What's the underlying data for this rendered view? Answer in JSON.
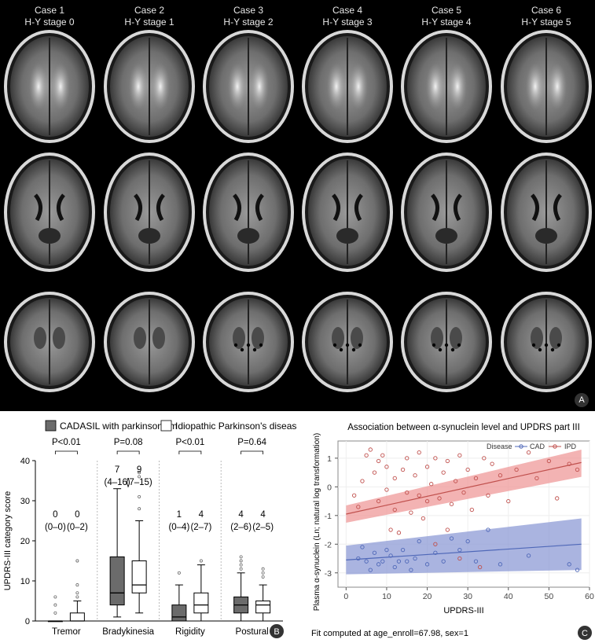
{
  "panel_a": {
    "cases": [
      {
        "case": "Case 1",
        "stage": "H-Y stage 0"
      },
      {
        "case": "Case 2",
        "stage": "H-Y stage 1"
      },
      {
        "case": "Case 3",
        "stage": "H-Y stage 2"
      },
      {
        "case": "Case 4",
        "stage": "H-Y stage 3"
      },
      {
        "case": "Case 5",
        "stage": "H-Y stage 4"
      },
      {
        "case": "Case 6",
        "stage": "H-Y stage 5"
      }
    ],
    "badge": "A"
  },
  "panel_b": {
    "badge": "B",
    "legend": [
      "CADASIL with parkinsonism",
      "Idiopathic Parkinson's disease"
    ],
    "colors": {
      "cadasil": "#6b6b6b",
      "ipd": "#ffffff"
    },
    "ylabel": "UPDRS-III category score",
    "yticks": [
      "0",
      "10",
      "20",
      "30",
      "40"
    ],
    "categories": [
      "Tremor",
      "Bradykinesia",
      "Rigidity",
      "Postural"
    ],
    "pvalues": [
      "P<0.01",
      "P=0.08",
      "P<0.01",
      "P=0.64"
    ],
    "medians_cad": [
      "0",
      "7",
      "1",
      "4"
    ],
    "ranges_cad": [
      "(0–0)",
      "(4–16)",
      "(0–4)",
      "(2–6)"
    ],
    "medians_ipd": [
      "0",
      "9",
      "4",
      "4"
    ],
    "ranges_ipd": [
      "(0–2)",
      "(7–15)",
      "(2–7)",
      "(2–5)"
    ]
  },
  "chart_data": [
    {
      "type": "box",
      "title": "",
      "ylabel": "UPDRS-III category score",
      "ylim": [
        0,
        40
      ],
      "categories": [
        "Tremor",
        "Bradykinesia",
        "Rigidity",
        "Postural"
      ],
      "series": [
        {
          "name": "CADASIL with parkinsonism",
          "boxes": [
            {
              "q1": 0,
              "median": 0,
              "q3": 0,
              "whisker_low": 0,
              "whisker_high": 0,
              "outliers": [
                2,
                4,
                6
              ]
            },
            {
              "q1": 4,
              "median": 7,
              "q3": 16,
              "whisker_low": 1,
              "whisker_high": 33,
              "outliers": []
            },
            {
              "q1": 0,
              "median": 1,
              "q3": 4,
              "whisker_low": 0,
              "whisker_high": 9,
              "outliers": [
                12
              ]
            },
            {
              "q1": 2,
              "median": 4,
              "q3": 6,
              "whisker_low": 0,
              "whisker_high": 12,
              "outliers": [
                13,
                14,
                15,
                16
              ]
            }
          ]
        },
        {
          "name": "Idiopathic Parkinson's disease",
          "boxes": [
            {
              "q1": 0,
              "median": 0,
              "q3": 2,
              "whisker_low": 0,
              "whisker_high": 5,
              "outliers": [
                6,
                7,
                9,
                15
              ]
            },
            {
              "q1": 7,
              "median": 9,
              "q3": 15,
              "whisker_low": 2,
              "whisker_high": 25,
              "outliers": [
                28,
                31,
                36,
                37
              ]
            },
            {
              "q1": 2,
              "median": 4,
              "q3": 7,
              "whisker_low": 0,
              "whisker_high": 14,
              "outliers": [
                15
              ]
            },
            {
              "q1": 2,
              "median": 4,
              "q3": 5,
              "whisker_low": 0,
              "whisker_high": 9,
              "outliers": [
                11,
                12,
                13
              ]
            }
          ]
        }
      ]
    },
    {
      "type": "scatter",
      "title": "Association between α-synuclein level and UPDRS part III",
      "xlabel": "UPDRS-III",
      "ylabel": "Plasma α-synuclein (Ln; natural log transformation)",
      "xlim": [
        -2,
        60
      ],
      "ylim": [
        -3.5,
        1.6
      ],
      "xticks": [
        "0",
        "10",
        "20",
        "30",
        "40",
        "50",
        "60"
      ],
      "yticks": [
        "1",
        "0",
        "-1",
        "-2",
        "-3"
      ],
      "legend_title": "Disease",
      "legend": [
        "CAD",
        "IPD"
      ],
      "colors": {
        "CAD": "#4f68b8",
        "IPD": "#c0504d",
        "CAD_band": "#8d9bd6",
        "IPD_band": "#ef9a9a"
      },
      "footnote": "Fit computed at age_enroll=67.98, sex=1",
      "badge": "C",
      "fit_CAD": {
        "x": [
          0,
          58
        ],
        "y": [
          -2.55,
          -2.0
        ],
        "band_low": [
          -3.05,
          -2.9
        ],
        "band_high": [
          -2.05,
          -1.1
        ]
      },
      "fit_IPD": {
        "x": [
          0,
          58
        ],
        "y": [
          -0.95,
          0.85
        ],
        "band_low": [
          -1.25,
          0.35
        ],
        "band_high": [
          -0.65,
          1.3
        ]
      },
      "points_CAD": [
        [
          3,
          -2.5
        ],
        [
          4,
          -2.1
        ],
        [
          5,
          -2.6
        ],
        [
          6,
          -2.9
        ],
        [
          7,
          -2.3
        ],
        [
          8,
          -2.7
        ],
        [
          9,
          -2.6
        ],
        [
          10,
          -2.2
        ],
        [
          11,
          -2.4
        ],
        [
          12,
          -2.8
        ],
        [
          13,
          -2.6
        ],
        [
          14,
          -2.2
        ],
        [
          15,
          -2.6
        ],
        [
          16,
          -2.9
        ],
        [
          17,
          -2.5
        ],
        [
          18,
          -1.9
        ],
        [
          20,
          -2.7
        ],
        [
          22,
          -2.3
        ],
        [
          24,
          -2.6
        ],
        [
          26,
          -1.8
        ],
        [
          28,
          -2.2
        ],
        [
          30,
          -1.9
        ],
        [
          32,
          -2.6
        ],
        [
          35,
          -1.5
        ],
        [
          38,
          -2.7
        ],
        [
          45,
          -2.4
        ],
        [
          55,
          -2.7
        ],
        [
          57,
          -2.9
        ]
      ],
      "points_IPD": [
        [
          2,
          -0.3
        ],
        [
          3,
          -0.7
        ],
        [
          4,
          0.2
        ],
        [
          5,
          1.1
        ],
        [
          6,
          1.3
        ],
        [
          7,
          0.5
        ],
        [
          8,
          -0.5
        ],
        [
          8,
          0.9
        ],
        [
          9,
          1.1
        ],
        [
          10,
          -0.1
        ],
        [
          10,
          0.7
        ],
        [
          11,
          -1.5
        ],
        [
          12,
          0.3
        ],
        [
          12,
          -0.8
        ],
        [
          13,
          -1.6
        ],
        [
          14,
          0.6
        ],
        [
          15,
          -0.2
        ],
        [
          15,
          1.0
        ],
        [
          16,
          -0.9
        ],
        [
          17,
          0.4
        ],
        [
          18,
          -0.3
        ],
        [
          18,
          1.2
        ],
        [
          19,
          -1.1
        ],
        [
          20,
          0.7
        ],
        [
          20,
          -0.5
        ],
        [
          21,
          0.1
        ],
        [
          22,
          1.0
        ],
        [
          22,
          -2.0
        ],
        [
          23,
          -0.4
        ],
        [
          24,
          0.5
        ],
        [
          25,
          -1.5
        ],
        [
          25,
          0.9
        ],
        [
          26,
          -0.6
        ],
        [
          27,
          0.2
        ],
        [
          28,
          1.1
        ],
        [
          28,
          -2.5
        ],
        [
          29,
          -0.2
        ],
        [
          30,
          0.6
        ],
        [
          31,
          -0.8
        ],
        [
          32,
          0.3
        ],
        [
          33,
          -2.8
        ],
        [
          34,
          1.0
        ],
        [
          35,
          -0.3
        ],
        [
          36,
          0.8
        ],
        [
          38,
          0.4
        ],
        [
          40,
          -0.5
        ],
        [
          42,
          0.6
        ],
        [
          45,
          1.2
        ],
        [
          47,
          0.3
        ],
        [
          50,
          0.9
        ],
        [
          52,
          -0.4
        ],
        [
          55,
          0.8
        ],
        [
          57,
          0.6
        ]
      ]
    }
  ]
}
